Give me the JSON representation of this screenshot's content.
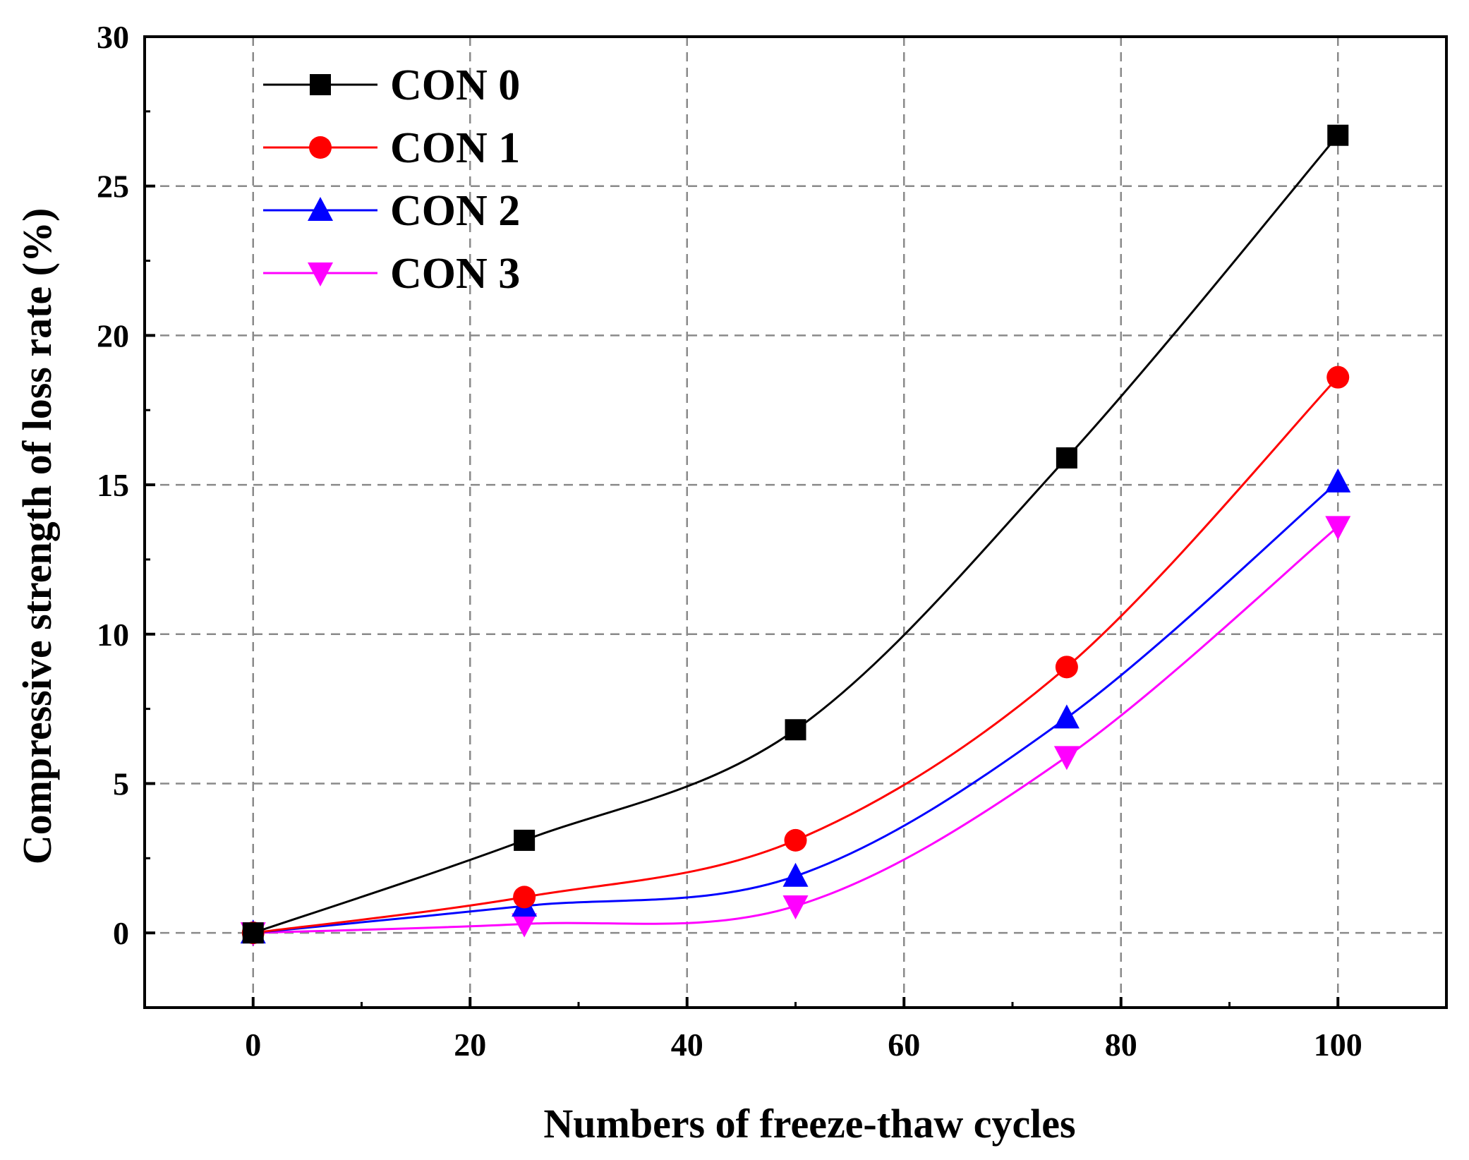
{
  "chart_data": {
    "type": "line",
    "title": "",
    "xlabel": "Numbers of freeze-thaw cycles",
    "ylabel": "Compressive strength of loss rate  (%)",
    "xlim": [
      -10,
      110
    ],
    "ylim": [
      -2.5,
      30
    ],
    "xticks": [
      0,
      20,
      40,
      60,
      80,
      100
    ],
    "yticks": [
      0,
      5,
      10,
      15,
      20,
      25,
      30
    ],
    "x_minor_ticks": [
      10,
      30,
      50,
      70,
      90
    ],
    "y_minor_ticks": [
      2.5,
      7.5,
      12.5,
      17.5,
      22.5,
      27.5
    ],
    "grid": true,
    "legend_position": "top-left",
    "x": [
      0,
      25,
      50,
      75,
      100
    ],
    "series": [
      {
        "name": "CON 0",
        "values": [
          0,
          3.1,
          6.8,
          15.9,
          26.7
        ],
        "color": "#000000",
        "marker": "square"
      },
      {
        "name": "CON 1",
        "values": [
          0,
          1.2,
          3.1,
          8.9,
          18.6
        ],
        "color": "#ff0000",
        "marker": "circle"
      },
      {
        "name": "CON 2",
        "values": [
          0,
          0.9,
          1.9,
          7.2,
          15.1
        ],
        "color": "#0000ff",
        "marker": "triangle-up"
      },
      {
        "name": "CON 3",
        "values": [
          0,
          0.3,
          0.9,
          5.9,
          13.6
        ],
        "color": "#ff00ff",
        "marker": "triangle-down"
      }
    ]
  }
}
